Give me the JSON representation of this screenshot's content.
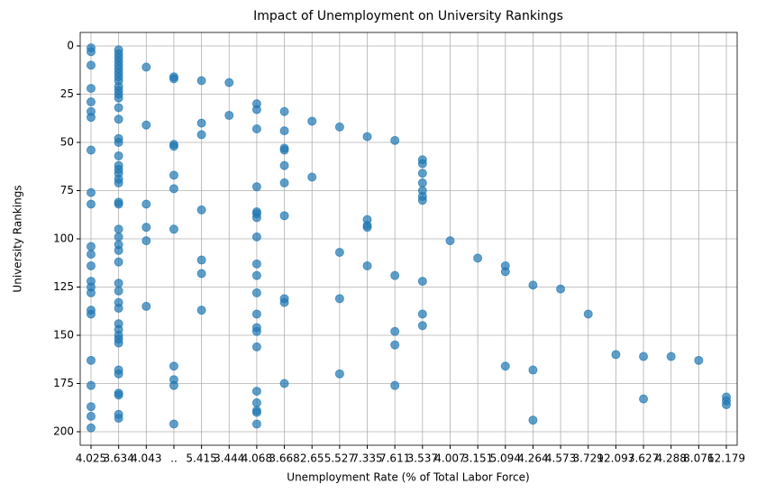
{
  "chart_data": {
    "type": "scatter",
    "title": "Impact of Unemployment on University Rankings",
    "xlabel": "Unemployment Rate (% of Total Labor Force)",
    "ylabel": "University Rankings",
    "categories": [
      "4.025",
      "3.634",
      "4.043",
      "..",
      "5.415",
      "3.444",
      "4.068",
      "3.668",
      "2.65",
      "5.527",
      "7.335",
      "7.611",
      "3.537",
      "4.007",
      "3.151",
      "5.094",
      "4.264",
      "4.573",
      "3.729",
      "12.097",
      "3.627",
      "4.288",
      "8.076",
      "12.179"
    ],
    "values": [
      [
        1,
        3,
        10,
        22,
        29,
        34,
        37,
        54,
        76,
        82,
        104,
        108,
        114,
        122,
        125,
        128,
        137,
        139,
        163,
        176,
        187,
        192,
        198
      ],
      [
        2,
        4,
        6,
        8,
        10,
        12,
        14,
        16,
        18,
        21,
        23,
        25,
        27,
        32,
        38,
        48,
        50,
        57,
        62,
        64,
        66,
        69,
        71,
        81,
        82,
        95,
        99,
        103,
        106,
        112,
        123,
        127,
        133,
        136,
        144,
        147,
        150,
        152,
        154,
        168,
        170,
        180,
        181,
        191,
        193
      ],
      [
        11,
        41,
        82,
        94,
        101,
        135
      ],
      [
        16,
        17,
        51,
        52,
        67,
        74,
        95,
        166,
        173,
        176,
        196
      ],
      [
        18,
        40,
        46,
        85,
        111,
        118,
        137
      ],
      [
        19,
        36
      ],
      [
        30,
        33,
        43,
        73,
        86,
        87,
        89,
        99,
        113,
        119,
        128,
        139,
        146,
        148,
        156,
        179,
        185,
        189,
        190,
        196
      ],
      [
        34,
        44,
        53,
        54,
        62,
        71,
        88,
        131,
        133,
        175
      ],
      [
        39,
        68
      ],
      [
        42,
        107,
        131,
        170
      ],
      [
        47,
        90,
        93,
        94,
        114
      ],
      [
        49,
        119,
        148,
        155,
        176
      ],
      [
        59,
        61,
        66,
        71,
        75,
        78,
        80,
        122,
        139,
        145
      ],
      [
        101
      ],
      [
        110
      ],
      [
        114,
        117,
        166
      ],
      [
        124,
        168,
        194
      ],
      [
        126
      ],
      [
        139
      ],
      [
        160
      ],
      [
        161,
        183
      ],
      [
        161
      ],
      [
        163
      ],
      [
        182,
        184,
        186
      ]
    ],
    "color": "#1f77b4",
    "ylim": [
      -7,
      207
    ],
    "y_inverted": true,
    "yticks": [
      0,
      25,
      50,
      75,
      100,
      125,
      150,
      175,
      200
    ],
    "grid": true
  }
}
